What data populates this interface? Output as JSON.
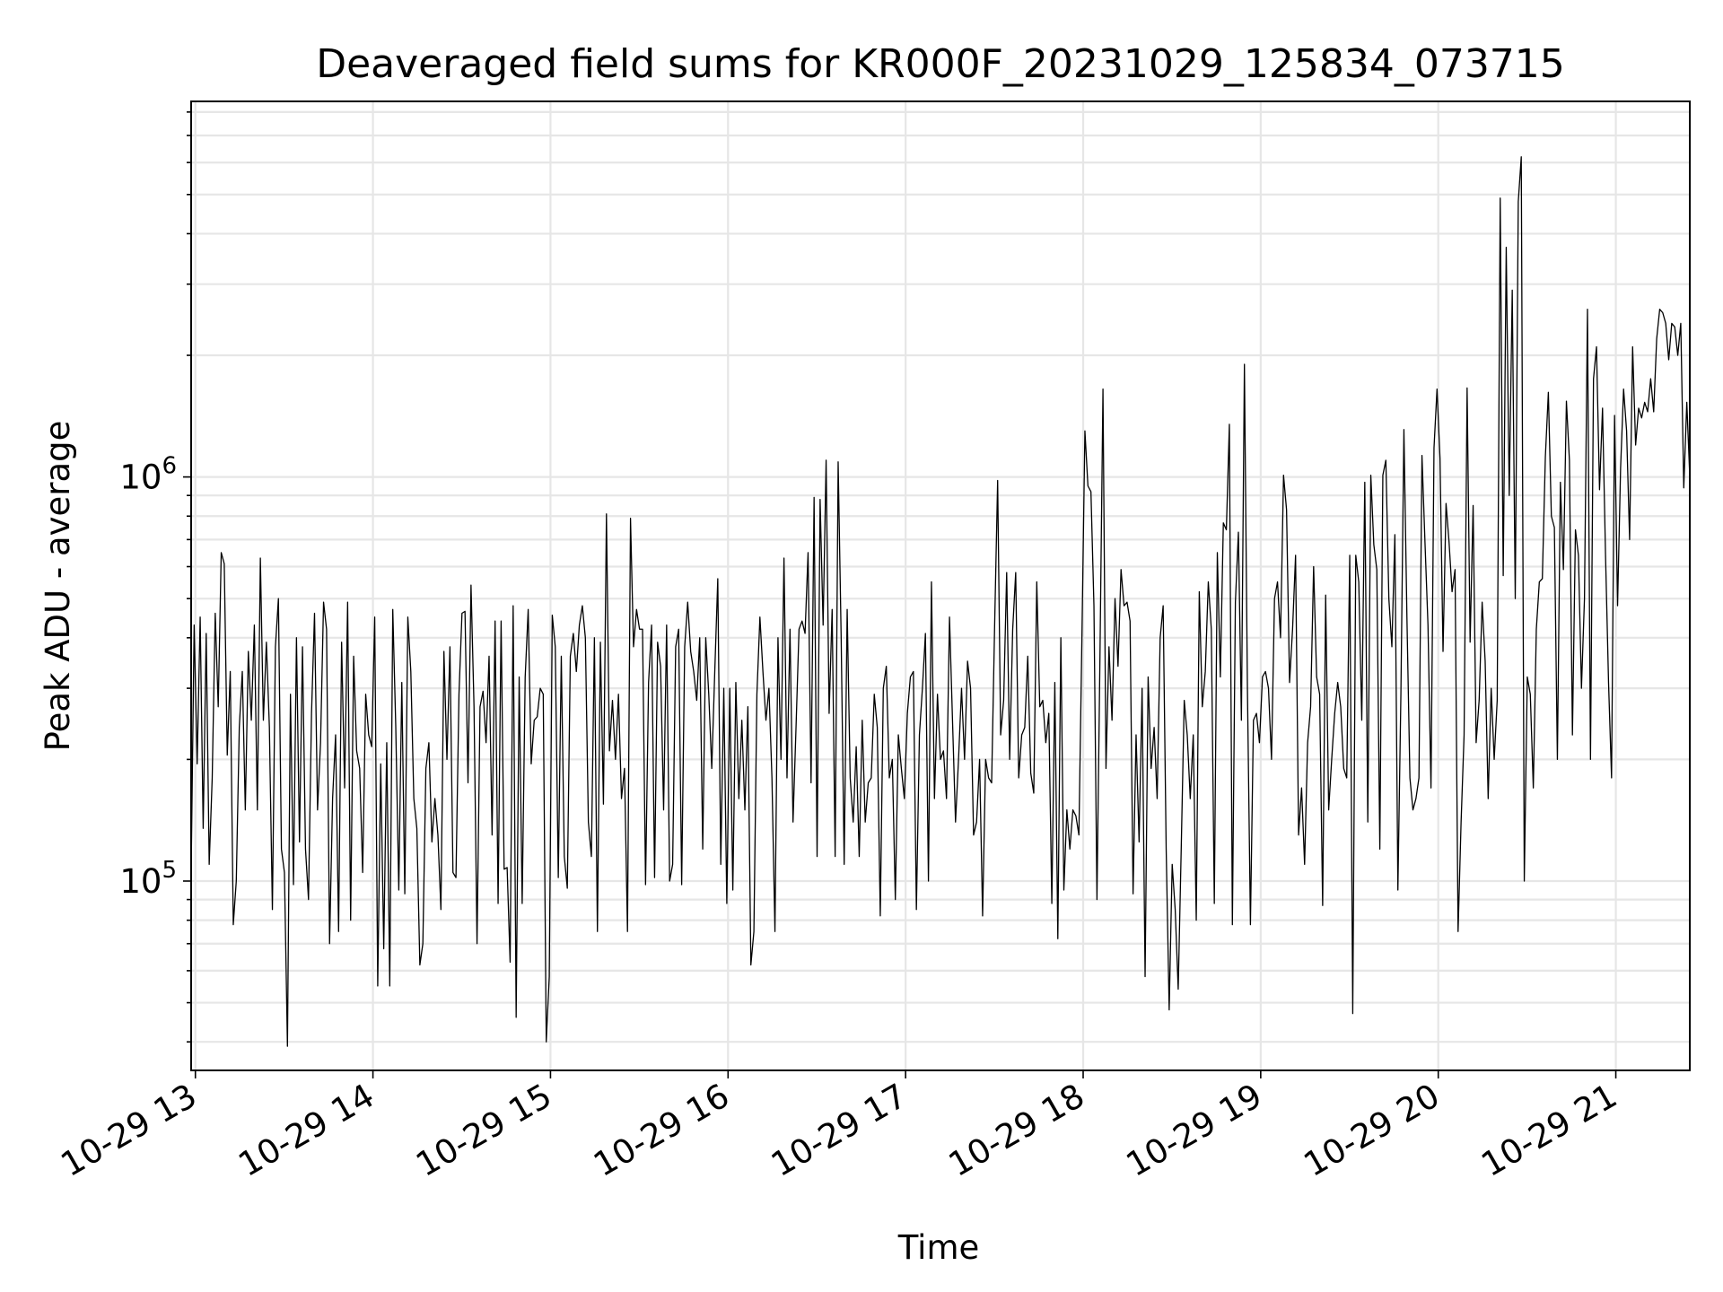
{
  "chart_data": {
    "type": "line",
    "title": "Deaveraged field sums for KR000F_20231029_125834_073715",
    "xlabel": "Time",
    "ylabel": "Peak ADU - average",
    "yscale": "log",
    "ylim": [
      34000,
      8500000
    ],
    "xlim": [
      "2023-10-29 12:58:34",
      "2023-10-29 21:25:00"
    ],
    "grid": true,
    "line_color": "#000000",
    "x_ticks": [
      "10-29 13",
      "10-29 14",
      "10-29 15",
      "10-29 16",
      "10-29 17",
      "10-29 18",
      "10-29 19",
      "10-29 20",
      "10-29 21"
    ],
    "y_ticks": [
      {
        "base": "10",
        "exp": "5",
        "value": 100000
      },
      {
        "base": "10",
        "exp": "6",
        "value": 1000000
      }
    ],
    "series": [
      {
        "x_start": "2023-10-29 12:58:34",
        "x_end": "2023-10-29 21:25:00",
        "values": [
          105000,
          430000,
          195000,
          450000,
          135000,
          410000,
          110000,
          180000,
          460000,
          270000,
          650000,
          610000,
          205000,
          330000,
          78000,
          100000,
          240000,
          330000,
          150000,
          370000,
          250000,
          430000,
          150000,
          630000,
          250000,
          390000,
          240000,
          85000,
          380000,
          500000,
          120000,
          105000,
          39000,
          290000,
          98000,
          400000,
          125000,
          380000,
          120000,
          90000,
          260000,
          460000,
          150000,
          220000,
          490000,
          420000,
          70000,
          160000,
          230000,
          75000,
          390000,
          170000,
          490000,
          80000,
          360000,
          210000,
          190000,
          105000,
          290000,
          230000,
          215000,
          450000,
          55000,
          195000,
          68000,
          220000,
          55000,
          470000,
          240000,
          95000,
          310000,
          93000,
          450000,
          330000,
          160000,
          135000,
          62000,
          70000,
          190000,
          220000,
          125000,
          160000,
          130000,
          85000,
          370000,
          200000,
          380000,
          105000,
          102000,
          290000,
          460000,
          465000,
          175000,
          540000,
          270000,
          70000,
          270000,
          295000,
          220000,
          360000,
          130000,
          440000,
          88000,
          440000,
          107000,
          108000,
          63000,
          480000,
          46000,
          320000,
          88000,
          320000,
          470000,
          195000,
          250000,
          255000,
          300000,
          290000,
          40000,
          58000,
          455000,
          380000,
          102000,
          360000,
          115000,
          96000,
          360000,
          410000,
          330000,
          430000,
          480000,
          400000,
          140000,
          115000,
          400000,
          75000,
          390000,
          155000,
          810000,
          210000,
          280000,
          200000,
          290000,
          160000,
          190000,
          75000,
          790000,
          380000,
          470000,
          420000,
          420000,
          98000,
          310000,
          430000,
          102000,
          390000,
          340000,
          150000,
          430000,
          100000,
          110000,
          380000,
          420000,
          98000,
          380000,
          490000,
          370000,
          330000,
          280000,
          400000,
          120000,
          400000,
          290000,
          190000,
          330000,
          560000,
          110000,
          300000,
          88000,
          300000,
          95000,
          310000,
          160000,
          250000,
          150000,
          270000,
          62000,
          75000,
          290000,
          450000,
          330000,
          250000,
          300000,
          180000,
          75000,
          400000,
          200000,
          630000,
          180000,
          420000,
          140000,
          240000,
          420000,
          440000,
          410000,
          650000,
          175000,
          890000,
          115000,
          880000,
          430000,
          1100000,
          260000,
          470000,
          115000,
          1090000,
          400000,
          110000,
          470000,
          180000,
          140000,
          215000,
          115000,
          250000,
          140000,
          175000,
          180000,
          290000,
          240000,
          82000,
          300000,
          340000,
          180000,
          200000,
          90000,
          230000,
          190000,
          160000,
          260000,
          320000,
          330000,
          85000,
          230000,
          300000,
          410000,
          100000,
          550000,
          160000,
          290000,
          200000,
          210000,
          160000,
          450000,
          250000,
          140000,
          200000,
          300000,
          200000,
          350000,
          300000,
          130000,
          140000,
          200000,
          82000,
          200000,
          180000,
          175000,
          430000,
          980000,
          230000,
          280000,
          580000,
          200000,
          420000,
          580000,
          180000,
          230000,
          240000,
          360000,
          185000,
          165000,
          550000,
          270000,
          280000,
          220000,
          260000,
          88000,
          310000,
          72000,
          400000,
          95000,
          150000,
          120000,
          150000,
          145000,
          130000,
          400000,
          1300000,
          950000,
          920000,
          480000,
          90000,
          360000,
          1650000,
          190000,
          380000,
          250000,
          500000,
          340000,
          590000,
          480000,
          490000,
          440000,
          93000,
          230000,
          125000,
          300000,
          58000,
          320000,
          190000,
          240000,
          160000,
          400000,
          480000,
          120000,
          48000,
          110000,
          85000,
          54000,
          120000,
          280000,
          230000,
          160000,
          230000,
          80000,
          520000,
          270000,
          330000,
          550000,
          420000,
          88000,
          650000,
          320000,
          770000,
          740000,
          1350000,
          78000,
          490000,
          730000,
          250000,
          1900000,
          300000,
          78000,
          250000,
          260000,
          220000,
          320000,
          330000,
          300000,
          200000,
          500000,
          550000,
          400000,
          1010000,
          830000,
          310000,
          420000,
          640000,
          130000,
          170000,
          110000,
          220000,
          270000,
          600000,
          320000,
          290000,
          87000,
          510000,
          150000,
          200000,
          260000,
          310000,
          270000,
          190000,
          180000,
          640000,
          47000,
          640000,
          550000,
          250000,
          970000,
          140000,
          1010000,
          680000,
          590000,
          120000,
          1010000,
          1100000,
          500000,
          380000,
          720000,
          95000,
          290000,
          1310000,
          450000,
          180000,
          150000,
          160000,
          180000,
          1130000,
          690000,
          430000,
          170000,
          1180000,
          1650000,
          1110000,
          370000,
          860000,
          690000,
          520000,
          590000,
          75000,
          140000,
          230000,
          1660000,
          390000,
          850000,
          220000,
          280000,
          490000,
          350000,
          160000,
          300000,
          200000,
          280000,
          4900000,
          570000,
          3700000,
          900000,
          2900000,
          500000,
          4800000,
          6200000,
          100000,
          320000,
          290000,
          170000,
          420000,
          550000,
          560000,
          1120000,
          1620000,
          800000,
          750000,
          200000,
          970000,
          590000,
          1540000,
          1100000,
          230000,
          740000,
          640000,
          300000,
          500000,
          2600000,
          200000,
          1750000,
          2100000,
          930000,
          1480000,
          640000,
          310000,
          180000,
          1420000,
          480000,
          1050000,
          1650000,
          1300000,
          700000,
          2100000,
          1200000,
          1480000,
          1400000,
          1530000,
          1450000,
          1750000,
          1450000,
          2200000,
          2600000,
          2550000,
          2400000,
          1950000,
          2400000,
          2350000,
          2000000,
          2400000,
          940000,
          1530000,
          1000000
        ]
      }
    ]
  }
}
